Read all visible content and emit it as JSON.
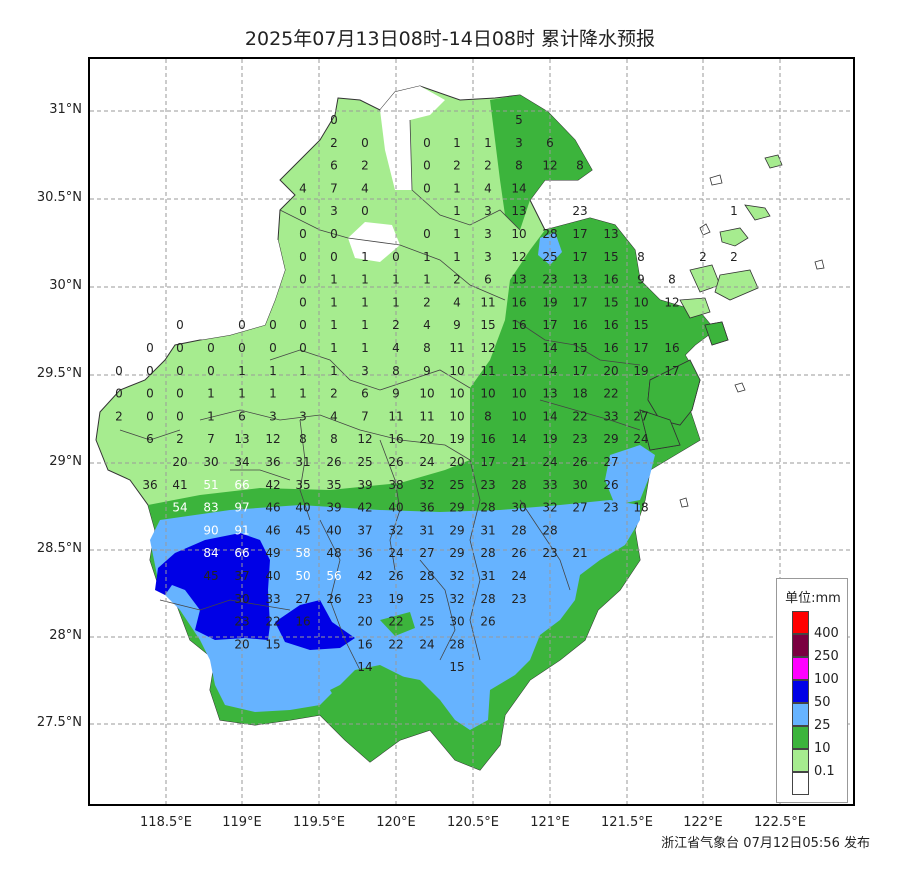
{
  "title": "2025年07月13日08时-14日08时 累计降水预报",
  "footer": "浙江省气象台 07月12日05:56 发布",
  "legend": {
    "title": "单位:mm",
    "levels": [
      {
        "label": "400",
        "color": "#ff0000"
      },
      {
        "label": "250",
        "color": "#7a0040"
      },
      {
        "label": "100",
        "color": "#ff00ff"
      },
      {
        "label": "50",
        "color": "#0000e6"
      },
      {
        "label": "25",
        "color": "#66b3ff"
      },
      {
        "label": "10",
        "color": "#3cb43c"
      },
      {
        "label": "0.1",
        "color": "#a6ec8f"
      },
      {
        "label": "",
        "color": "#ffffff"
      }
    ]
  },
  "axes": {
    "lat_labels": [
      "31°N",
      "30.5°N",
      "30°N",
      "29.5°N",
      "29°N",
      "28.5°N",
      "28°N",
      "27.5°N"
    ],
    "lon_labels": [
      "118.5°E",
      "119°E",
      "119.5°E",
      "120°E",
      "120.5°E",
      "121°E",
      "121.5°E",
      "122°E",
      "122.5°E"
    ]
  },
  "colors": {
    "light_green": "#a6ec8f",
    "green": "#3cb43c",
    "light_blue": "#66b3ff",
    "blue": "#0000e6",
    "county_border": "#444444"
  },
  "grid_values": [
    {
      "r": 0,
      "cells": [
        [
          334,
          "0"
        ],
        [
          519,
          "5"
        ]
      ]
    },
    {
      "r": 1,
      "cells": [
        [
          334,
          "2"
        ],
        [
          365,
          "0"
        ],
        [
          427,
          "0"
        ],
        [
          457,
          "1"
        ],
        [
          488,
          "1"
        ],
        [
          519,
          "3"
        ],
        [
          550,
          "6"
        ]
      ]
    },
    {
      "r": 2,
      "cells": [
        [
          334,
          "6"
        ],
        [
          365,
          "2"
        ],
        [
          427,
          "0"
        ],
        [
          457,
          "2"
        ],
        [
          488,
          "2"
        ],
        [
          519,
          "8"
        ],
        [
          550,
          "12"
        ],
        [
          580,
          "8"
        ]
      ]
    },
    {
      "r": 3,
      "cells": [
        [
          303,
          "4"
        ],
        [
          334,
          "7"
        ],
        [
          365,
          "4"
        ],
        [
          427,
          "0"
        ],
        [
          457,
          "1"
        ],
        [
          488,
          "4"
        ],
        [
          519,
          "14"
        ]
      ]
    },
    {
      "r": 4,
      "cells": [
        [
          303,
          "0"
        ],
        [
          334,
          "3"
        ],
        [
          365,
          "0"
        ],
        [
          457,
          "1"
        ],
        [
          488,
          "3"
        ],
        [
          519,
          "13"
        ],
        [
          580,
          "23"
        ],
        [
          734,
          "1"
        ]
      ]
    },
    {
      "r": 5,
      "cells": [
        [
          303,
          "0"
        ],
        [
          334,
          "0"
        ],
        [
          427,
          "0"
        ],
        [
          457,
          "1"
        ],
        [
          488,
          "3"
        ],
        [
          519,
          "10"
        ],
        [
          550,
          "28"
        ],
        [
          580,
          "17"
        ],
        [
          611,
          "13"
        ]
      ]
    },
    {
      "r": 6,
      "cells": [
        [
          303,
          "0"
        ],
        [
          334,
          "0"
        ],
        [
          365,
          "1"
        ],
        [
          396,
          "0"
        ],
        [
          427,
          "1"
        ],
        [
          457,
          "1"
        ],
        [
          488,
          "3"
        ],
        [
          519,
          "12"
        ],
        [
          550,
          "25"
        ],
        [
          580,
          "17"
        ],
        [
          611,
          "15"
        ],
        [
          641,
          "8"
        ],
        [
          703,
          "2"
        ],
        [
          734,
          "2"
        ]
      ]
    },
    {
      "r": 7,
      "cells": [
        [
          303,
          "0"
        ],
        [
          334,
          "1"
        ],
        [
          365,
          "1"
        ],
        [
          396,
          "1"
        ],
        [
          427,
          "1"
        ],
        [
          457,
          "2"
        ],
        [
          488,
          "6"
        ],
        [
          519,
          "13"
        ],
        [
          550,
          "23"
        ],
        [
          580,
          "13"
        ],
        [
          611,
          "16"
        ],
        [
          641,
          "9"
        ],
        [
          672,
          "8"
        ]
      ]
    },
    {
      "r": 8,
      "cells": [
        [
          303,
          "0"
        ],
        [
          334,
          "1"
        ],
        [
          365,
          "1"
        ],
        [
          396,
          "1"
        ],
        [
          427,
          "2"
        ],
        [
          457,
          "4"
        ],
        [
          488,
          "11"
        ],
        [
          519,
          "16"
        ],
        [
          550,
          "19"
        ],
        [
          580,
          "17"
        ],
        [
          611,
          "15"
        ],
        [
          641,
          "10"
        ],
        [
          672,
          "12"
        ]
      ]
    },
    {
      "r": 9,
      "cells": [
        [
          180,
          "0"
        ],
        [
          242,
          "0"
        ],
        [
          273,
          "0"
        ],
        [
          303,
          "0"
        ],
        [
          334,
          "1"
        ],
        [
          365,
          "1"
        ],
        [
          396,
          "2"
        ],
        [
          427,
          "4"
        ],
        [
          457,
          "9"
        ],
        [
          488,
          "15"
        ],
        [
          519,
          "16"
        ],
        [
          550,
          "17"
        ],
        [
          580,
          "16"
        ],
        [
          611,
          "16"
        ],
        [
          641,
          "15"
        ]
      ]
    },
    {
      "r": 10,
      "cells": [
        [
          150,
          "0"
        ],
        [
          180,
          "0"
        ],
        [
          211,
          "0"
        ],
        [
          242,
          "0"
        ],
        [
          273,
          "0"
        ],
        [
          303,
          "0"
        ],
        [
          334,
          "1"
        ],
        [
          365,
          "1"
        ],
        [
          396,
          "4"
        ],
        [
          427,
          "8"
        ],
        [
          457,
          "11"
        ],
        [
          488,
          "12"
        ],
        [
          519,
          "15"
        ],
        [
          550,
          "14"
        ],
        [
          580,
          "15"
        ],
        [
          611,
          "16"
        ],
        [
          641,
          "17"
        ],
        [
          672,
          "16"
        ]
      ]
    },
    {
      "r": 11,
      "cells": [
        [
          119,
          "0"
        ],
        [
          150,
          "0"
        ],
        [
          180,
          "0"
        ],
        [
          211,
          "0"
        ],
        [
          242,
          "1"
        ],
        [
          273,
          "1"
        ],
        [
          303,
          "1"
        ],
        [
          334,
          "1"
        ],
        [
          365,
          "3"
        ],
        [
          396,
          "8"
        ],
        [
          427,
          "9"
        ],
        [
          457,
          "10"
        ],
        [
          488,
          "11"
        ],
        [
          519,
          "13"
        ],
        [
          550,
          "14"
        ],
        [
          580,
          "17"
        ],
        [
          611,
          "20"
        ],
        [
          641,
          "19"
        ],
        [
          672,
          "17"
        ]
      ]
    },
    {
      "r": 12,
      "cells": [
        [
          119,
          "0"
        ],
        [
          150,
          "0"
        ],
        [
          180,
          "0"
        ],
        [
          211,
          "1"
        ],
        [
          242,
          "1"
        ],
        [
          273,
          "1"
        ],
        [
          303,
          "1"
        ],
        [
          334,
          "2"
        ],
        [
          365,
          "6"
        ],
        [
          396,
          "9"
        ],
        [
          427,
          "10"
        ],
        [
          457,
          "10"
        ],
        [
          488,
          "10"
        ],
        [
          519,
          "10"
        ],
        [
          550,
          "13"
        ],
        [
          580,
          "18"
        ],
        [
          611,
          "22"
        ]
      ]
    },
    {
      "r": 13,
      "cells": [
        [
          119,
          "2"
        ],
        [
          150,
          "0"
        ],
        [
          180,
          "0"
        ],
        [
          211,
          "1"
        ],
        [
          242,
          "6"
        ],
        [
          273,
          "3"
        ],
        [
          303,
          "3"
        ],
        [
          334,
          "4"
        ],
        [
          365,
          "7"
        ],
        [
          396,
          "11"
        ],
        [
          427,
          "11"
        ],
        [
          457,
          "10"
        ],
        [
          488,
          "8"
        ],
        [
          519,
          "10"
        ],
        [
          550,
          "14"
        ],
        [
          580,
          "22"
        ],
        [
          611,
          "33"
        ],
        [
          641,
          "27"
        ]
      ]
    },
    {
      "r": 14,
      "cells": [
        [
          150,
          "6"
        ],
        [
          180,
          "2"
        ],
        [
          211,
          "7"
        ],
        [
          242,
          "13"
        ],
        [
          273,
          "12"
        ],
        [
          303,
          "8"
        ],
        [
          334,
          "8"
        ],
        [
          365,
          "12"
        ],
        [
          396,
          "16"
        ],
        [
          427,
          "20"
        ],
        [
          457,
          "19"
        ],
        [
          488,
          "16"
        ],
        [
          519,
          "14"
        ],
        [
          550,
          "19"
        ],
        [
          580,
          "23"
        ],
        [
          611,
          "29"
        ],
        [
          641,
          "24"
        ]
      ]
    },
    {
      "r": 15,
      "cells": [
        [
          180,
          "20"
        ],
        [
          211,
          "30"
        ],
        [
          242,
          "34"
        ],
        [
          273,
          "36"
        ],
        [
          303,
          "31"
        ],
        [
          334,
          "26"
        ],
        [
          365,
          "25"
        ],
        [
          396,
          "26"
        ],
        [
          427,
          "24"
        ],
        [
          457,
          "20"
        ],
        [
          488,
          "17"
        ],
        [
          519,
          "21"
        ],
        [
          550,
          "24"
        ],
        [
          580,
          "26"
        ],
        [
          611,
          "27"
        ]
      ]
    },
    {
      "r": 16,
      "cells": [
        [
          150,
          "36"
        ],
        [
          180,
          "41"
        ],
        [
          211,
          "51"
        ],
        [
          242,
          "66"
        ],
        [
          273,
          "42"
        ],
        [
          303,
          "35"
        ],
        [
          334,
          "35"
        ],
        [
          365,
          "39"
        ],
        [
          396,
          "38"
        ],
        [
          427,
          "32"
        ],
        [
          457,
          "25"
        ],
        [
          488,
          "23"
        ],
        [
          519,
          "28"
        ],
        [
          550,
          "33"
        ],
        [
          580,
          "30"
        ],
        [
          611,
          "26"
        ]
      ]
    },
    {
      "r": 17,
      "cells": [
        [
          180,
          "54"
        ],
        [
          211,
          "83"
        ],
        [
          242,
          "97"
        ],
        [
          273,
          "46"
        ],
        [
          303,
          "40"
        ],
        [
          334,
          "39"
        ],
        [
          365,
          "42"
        ],
        [
          396,
          "40"
        ],
        [
          427,
          "36"
        ],
        [
          457,
          "29"
        ],
        [
          488,
          "28"
        ],
        [
          519,
          "30"
        ],
        [
          550,
          "32"
        ],
        [
          580,
          "27"
        ],
        [
          611,
          "23"
        ],
        [
          641,
          "18"
        ]
      ]
    },
    {
      "r": 18,
      "cells": [
        [
          211,
          "90"
        ],
        [
          242,
          "91"
        ],
        [
          273,
          "46"
        ],
        [
          303,
          "45"
        ],
        [
          334,
          "40"
        ],
        [
          365,
          "37"
        ],
        [
          396,
          "32"
        ],
        [
          427,
          "31"
        ],
        [
          457,
          "29"
        ],
        [
          488,
          "31"
        ],
        [
          519,
          "28"
        ],
        [
          550,
          "28"
        ]
      ]
    },
    {
      "r": 19,
      "cells": [
        [
          211,
          "84"
        ],
        [
          242,
          "66"
        ],
        [
          273,
          "49"
        ],
        [
          303,
          "58"
        ],
        [
          334,
          "48"
        ],
        [
          365,
          "36"
        ],
        [
          396,
          "24"
        ],
        [
          427,
          "27"
        ],
        [
          457,
          "29"
        ],
        [
          488,
          "28"
        ],
        [
          519,
          "26"
        ],
        [
          550,
          "23"
        ],
        [
          580,
          "21"
        ]
      ]
    },
    {
      "r": 20,
      "cells": [
        [
          211,
          "45"
        ],
        [
          242,
          "37"
        ],
        [
          273,
          "40"
        ],
        [
          303,
          "50"
        ],
        [
          334,
          "56"
        ],
        [
          365,
          "42"
        ],
        [
          396,
          "26"
        ],
        [
          427,
          "28"
        ],
        [
          457,
          "32"
        ],
        [
          488,
          "31"
        ],
        [
          519,
          "24"
        ]
      ]
    },
    {
      "r": 21,
      "cells": [
        [
          242,
          "30"
        ],
        [
          273,
          "33"
        ],
        [
          303,
          "27"
        ],
        [
          334,
          "26"
        ],
        [
          365,
          "23"
        ],
        [
          396,
          "19"
        ],
        [
          427,
          "25"
        ],
        [
          457,
          "32"
        ],
        [
          488,
          "28"
        ],
        [
          519,
          "23"
        ]
      ]
    },
    {
      "r": 22,
      "cells": [
        [
          242,
          "23"
        ],
        [
          273,
          "22"
        ],
        [
          303,
          "16"
        ],
        [
          365,
          "20"
        ],
        [
          396,
          "22"
        ],
        [
          427,
          "25"
        ],
        [
          457,
          "30"
        ],
        [
          488,
          "26"
        ]
      ]
    },
    {
      "r": 23,
      "cells": [
        [
          242,
          "20"
        ],
        [
          273,
          "15"
        ],
        [
          365,
          "16"
        ],
        [
          396,
          "22"
        ],
        [
          427,
          "24"
        ],
        [
          457,
          "28"
        ]
      ]
    },
    {
      "r": 24,
      "cells": [
        [
          365,
          "14"
        ],
        [
          457,
          "15"
        ]
      ]
    }
  ]
}
